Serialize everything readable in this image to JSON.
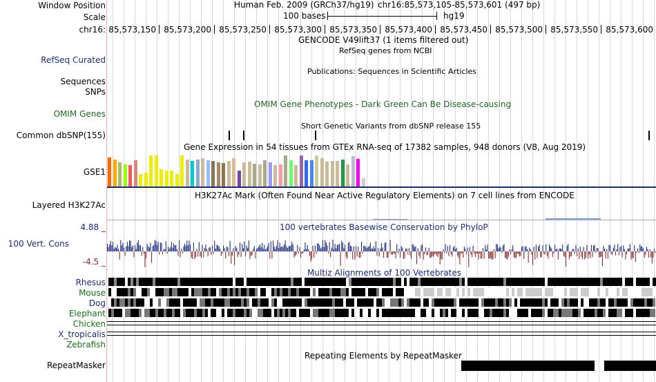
{
  "header": {
    "window_position_label": "Window Position",
    "assembly": "Human Feb. 2009 (GRCh37/hg19)",
    "position": "chr16:85,573,105-85,573,601 (497 bp)",
    "scale_label": "Scale",
    "scale_text": "100 bases",
    "scale_db": "hg19",
    "chrom_label": "chr16:",
    "ticks": [
      "85,573,150",
      "85,573,200",
      "85,573,250",
      "85,573,300",
      "85,573,350",
      "85,573,400",
      "85,573,450",
      "85,573,500",
      "85,573,550",
      "85,573,600"
    ]
  },
  "tracks": {
    "gencode_title": "GENCODE V49lift37 (1 items filtered out)",
    "refseq_label": "RefSeq Curated",
    "refseq_title": "RefSeq genes from NCBI",
    "publications_title": "Publications: Sequences in Scientific Articles",
    "sequences_label": "Sequences",
    "snps_label": "SNPs",
    "omim_label": "OMIM Genes",
    "omim_title": "OMIM Gene Phenotypes - Dark Green Can Be Disease-causing",
    "dbsnp_label": "Common dbSNP(155)",
    "dbsnp_title": "Short Genetic Variants from dbSNP release 155",
    "gtex_title": "Gene Expression in 54 tissues from GTEx RNA-seq of 17382 samples, 948 donors (V8, Aug 2019)",
    "gtex_label": "GSE1",
    "h3k27ac_label": "Layered H3K27Ac",
    "h3k27ac_title": "H3K27Ac Mark (Often Found Near Active Regulatory Elements) on 7 cell lines from ENCODE",
    "cons_max": "4.88 _",
    "cons_label": "100 Vert. Cons",
    "cons_title": "100 vertebrates Basewise Conservation by PhyloP",
    "cons_min": "-4.5 _",
    "multiz_title": "Multiz Alignments of 100 Vertebrates",
    "species": [
      "Rhesus",
      "Mouse",
      "Dog",
      "Elephant",
      "Chicken",
      "X_tropicalis",
      "Zebrafish"
    ],
    "repeat_label": "RepeatMasker",
    "repeat_title": "Repeating Elements by RepeatMasker"
  },
  "gtex_values": [
    0.92,
    0.85,
    0.76,
    0.7,
    0.68,
    0.82,
    0.4,
    0.45,
    0.98,
    0.98,
    0.55,
    0.5,
    0.5,
    0.4,
    0.98,
    0.86,
    0.8,
    0.86,
    0.9,
    0.82,
    0.8,
    0.76,
    0.75,
    0.8,
    0.9,
    0.5,
    0.76,
    0.78,
    0.72,
    0.7,
    0.84,
    0.76,
    0.68,
    0.7,
    0.98,
    0.82,
    0.68,
    0.98,
    0.84,
    0.82,
    0.98,
    0.9,
    0.78,
    0.8,
    0.8,
    0.86,
    0.7,
    0.96,
    0.88,
    0.28
  ],
  "gtex_colors": [
    "#ff6600",
    "#ffaa00",
    "#aabb66",
    "#99ff00",
    "#ff5555",
    "#dd8877",
    "#eeee00",
    "#eeee00",
    "#eeee00",
    "#eeee00",
    "#eeee00",
    "#eeee00",
    "#eeee00",
    "#eeee00",
    "#eeee00",
    "#ccbb99",
    "#00cccc",
    "#88aacc",
    "#ccbb99",
    "#99bbff",
    "#887755",
    "#aa8866",
    "#887755",
    "#ccbb99",
    "#ddbb99",
    "#7744aa",
    "#ccbb99",
    "#ccbb99",
    "#aaaa88",
    "#ccbb99",
    "#aaaa88",
    "#9999ff",
    "#ccbb99",
    "#ff99aa",
    "#aaaa88",
    "#66ff66",
    "#ccbb99",
    "#9966aa",
    "#3366ff",
    "#4488ff",
    "#cccc99",
    "#ccbb99",
    "#ccbb99",
    "#ccbb99",
    "#ccbb99",
    "#229944",
    "#ccbb99",
    "#bbbbcc",
    "#ff00ff",
    "#cccccc"
  ],
  "colors": {
    "navy": "#1a2a80",
    "omim_green": "#1e6b1e",
    "cons_pos": "#1a2a80",
    "cons_neg": "#8b2a2a",
    "species_green": "#117711"
  }
}
